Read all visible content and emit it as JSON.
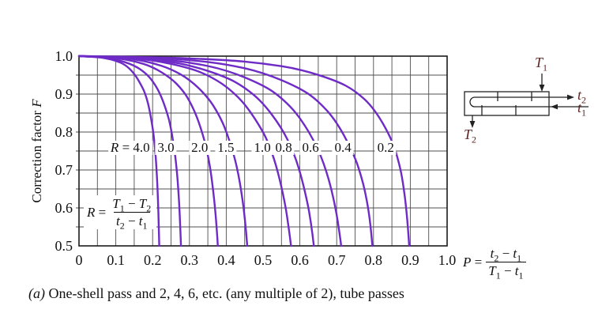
{
  "caption": {
    "a": "(a)",
    "text": "One-shell pass and 2, 4, 6, etc. (any multiple of 2), tube passes"
  },
  "chart_data": {
    "type": "line",
    "title": "Correction factor chart, one shell pass and 2, 4, 6 (any multiple of 2) tube passes",
    "xlabel": "P = (t2 - t1)/(T1 - t1)",
    "ylabel": "Correction factor F",
    "ylabel_text": "Correction factor",
    "ylabel_var": "F",
    "xlim": [
      0,
      1.0
    ],
    "ylim": [
      0.5,
      1.0
    ],
    "grid": "on",
    "grid_step": 0.05,
    "x_ticks": [
      "0",
      "0.1",
      "0.2",
      "0.3",
      "0.4",
      "0.5",
      "0.6",
      "0.7",
      "0.8",
      "0.9",
      "1.0"
    ],
    "y_ticks": [
      "1.0",
      "0.9",
      "0.8",
      "0.7",
      "0.6",
      "0.5"
    ],
    "curve_color": "#6e2bc6",
    "grid_color": "#4f4f4f",
    "border_color": "#1b1b1b",
    "r_label_prefix": "R",
    "series": [
      {
        "name": "R=4.0",
        "R": 4.0,
        "label": "4.0",
        "prefix": true,
        "label_P": 0.139,
        "points": [
          [
            0,
            1
          ],
          [
            0.03,
            0.999
          ],
          [
            0.05,
            0.998
          ],
          [
            0.08,
            0.993
          ],
          [
            0.1,
            0.988
          ],
          [
            0.125,
            0.978
          ],
          [
            0.15,
            0.955
          ],
          [
            0.17,
            0.922
          ],
          [
            0.18,
            0.901
          ],
          [
            0.19,
            0.868
          ],
          [
            0.2,
            0.813
          ],
          [
            0.205,
            0.775
          ],
          [
            0.21,
            0.714
          ],
          [
            0.215,
            0.615
          ],
          [
            0.218,
            0.5
          ]
        ]
      },
      {
        "name": "R=3.0",
        "R": 3.0,
        "label": "3.0",
        "prefix": false,
        "label_P": 0.236,
        "points": [
          [
            0,
            1
          ],
          [
            0.05,
            0.998
          ],
          [
            0.1,
            0.992
          ],
          [
            0.15,
            0.976
          ],
          [
            0.18,
            0.956
          ],
          [
            0.2,
            0.935
          ],
          [
            0.22,
            0.903
          ],
          [
            0.24,
            0.85
          ],
          [
            0.25,
            0.81
          ],
          [
            0.26,
            0.749
          ],
          [
            0.265,
            0.706
          ],
          [
            0.27,
            0.647
          ],
          [
            0.274,
            0.575
          ],
          [
            0.277,
            0.5
          ]
        ]
      },
      {
        "name": "R=2.0",
        "R": 2.0,
        "label": "2.0",
        "prefix": false,
        "label_P": 0.328,
        "points": [
          [
            0,
            1
          ],
          [
            0.05,
            0.999
          ],
          [
            0.1,
            0.995
          ],
          [
            0.15,
            0.987
          ],
          [
            0.2,
            0.972
          ],
          [
            0.25,
            0.942
          ],
          [
            0.28,
            0.912
          ],
          [
            0.3,
            0.883
          ],
          [
            0.32,
            0.842
          ],
          [
            0.34,
            0.782
          ],
          [
            0.35,
            0.74
          ],
          [
            0.36,
            0.683
          ],
          [
            0.37,
            0.598
          ],
          [
            0.375,
            0.532
          ],
          [
            0.377,
            0.5
          ]
        ]
      },
      {
        "name": "R=1.5",
        "R": 1.5,
        "label": "1.5",
        "prefix": false,
        "label_P": 0.399,
        "points": [
          [
            0,
            1
          ],
          [
            0.1,
            0.997
          ],
          [
            0.15,
            0.992
          ],
          [
            0.2,
            0.982
          ],
          [
            0.25,
            0.966
          ],
          [
            0.3,
            0.939
          ],
          [
            0.35,
            0.892
          ],
          [
            0.38,
            0.846
          ],
          [
            0.4,
            0.803
          ],
          [
            0.42,
            0.743
          ],
          [
            0.43,
            0.703
          ],
          [
            0.44,
            0.651
          ],
          [
            0.45,
            0.579
          ],
          [
            0.457,
            0.5
          ]
        ]
      },
      {
        "name": "R=1.0",
        "R": 1.0,
        "label": "1.0",
        "prefix": false,
        "label_P": 0.498,
        "points": [
          [
            0,
            1
          ],
          [
            0.1,
            0.998
          ],
          [
            0.2,
            0.99
          ],
          [
            0.3,
            0.969
          ],
          [
            0.35,
            0.95
          ],
          [
            0.4,
            0.921
          ],
          [
            0.45,
            0.876
          ],
          [
            0.5,
            0.802
          ],
          [
            0.52,
            0.758
          ],
          [
            0.54,
            0.698
          ],
          [
            0.56,
            0.611
          ],
          [
            0.57,
            0.546
          ],
          [
            0.576,
            0.5
          ]
        ]
      },
      {
        "name": "R=0.8",
        "R": 0.8,
        "label": "0.8",
        "prefix": false,
        "label_P": 0.556,
        "points": [
          [
            0,
            1
          ],
          [
            0.1,
            0.998
          ],
          [
            0.2,
            0.992
          ],
          [
            0.3,
            0.977
          ],
          [
            0.4,
            0.945
          ],
          [
            0.45,
            0.918
          ],
          [
            0.5,
            0.877
          ],
          [
            0.55,
            0.812
          ],
          [
            0.58,
            0.753
          ],
          [
            0.6,
            0.697
          ],
          [
            0.62,
            0.618
          ],
          [
            0.63,
            0.562
          ],
          [
            0.638,
            0.5
          ]
        ]
      },
      {
        "name": "R=0.6",
        "R": 0.6,
        "label": "0.6",
        "prefix": false,
        "label_P": 0.629,
        "points": [
          [
            0,
            1
          ],
          [
            0.2,
            0.994
          ],
          [
            0.3,
            0.984
          ],
          [
            0.4,
            0.964
          ],
          [
            0.5,
            0.924
          ],
          [
            0.55,
            0.891
          ],
          [
            0.6,
            0.84
          ],
          [
            0.65,
            0.757
          ],
          [
            0.68,
            0.674
          ],
          [
            0.7,
            0.586
          ],
          [
            0.71,
            0.517
          ],
          [
            0.712,
            0.5
          ]
        ]
      },
      {
        "name": "R=0.4",
        "R": 0.4,
        "label": "0.4",
        "prefix": false,
        "label_P": 0.717,
        "points": [
          [
            0,
            1
          ],
          [
            0.2,
            0.996
          ],
          [
            0.3,
            0.99
          ],
          [
            0.4,
            0.979
          ],
          [
            0.5,
            0.957
          ],
          [
            0.6,
            0.916
          ],
          [
            0.65,
            0.882
          ],
          [
            0.7,
            0.828
          ],
          [
            0.75,
            0.735
          ],
          [
            0.77,
            0.673
          ],
          [
            0.78,
            0.63
          ],
          [
            0.79,
            0.573
          ],
          [
            0.797,
            0.5
          ]
        ]
      },
      {
        "name": "R=0.2",
        "R": 0.2,
        "label": "0.2",
        "prefix": false,
        "label_P": 0.833,
        "points": [
          [
            0,
            1
          ],
          [
            0.2,
            0.998
          ],
          [
            0.4,
            0.99
          ],
          [
            0.5,
            0.981
          ],
          [
            0.6,
            0.966
          ],
          [
            0.7,
            0.935
          ],
          [
            0.75,
            0.909
          ],
          [
            0.8,
            0.865
          ],
          [
            0.85,
            0.781
          ],
          [
            0.87,
            0.717
          ],
          [
            0.88,
            0.668
          ],
          [
            0.89,
            0.593
          ],
          [
            0.897,
            0.5
          ]
        ]
      }
    ]
  },
  "r_formula": {
    "lhs": "R",
    "eq": "=",
    "n1": "T",
    "n1s": "1",
    "op": "−",
    "n2": "T",
    "n2s": "2",
    "d1": "t",
    "d1s": "2",
    "dop": "−",
    "d2": "t",
    "d2s": "1"
  },
  "p_formula": {
    "lhs": "P",
    "eq": "=",
    "n1": "t",
    "n1s": "2",
    "op": "−",
    "n2": "t",
    "n2s": "1",
    "d1": "T",
    "d1s": "1",
    "dop": "−",
    "d2": "t",
    "d2s": "1"
  },
  "diagram": {
    "label_color": "#5f2424",
    "shell_inlet": "T",
    "shell_inlet_sub": "1",
    "shell_outlet": "T",
    "shell_outlet_sub": "2",
    "tube_outlet": "t",
    "tube_outlet_sub": "2",
    "tube_inlet": "t",
    "tube_inlet_sub": "1"
  }
}
